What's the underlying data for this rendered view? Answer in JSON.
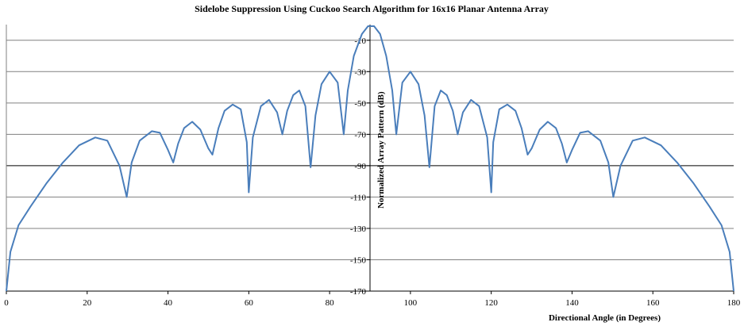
{
  "chart_data": {
    "type": "line",
    "title": "Sidelobe Suppression  Using Cuckoo Search Algorithm  for 16x16 Planar Antenna Array",
    "xlabel": "Directional Angle (in Degrees)",
    "ylabel": "Normalized Array Pattern (dB)",
    "xlim": [
      0,
      180
    ],
    "ylim": [
      -170,
      0
    ],
    "x_ticks": [
      0,
      20,
      40,
      60,
      80,
      100,
      120,
      140,
      160,
      180
    ],
    "y_ticks": [
      -10,
      -30,
      -50,
      -70,
      -90,
      -110,
      -130,
      -150,
      -170
    ],
    "grid": "horizontal",
    "legend": "none",
    "line_color": "#4a7ebb",
    "series": [
      {
        "points": [
          [
            0,
            -170
          ],
          [
            1,
            -145
          ],
          [
            3,
            -128
          ],
          [
            6,
            -116
          ],
          [
            10,
            -101
          ],
          [
            14,
            -88
          ],
          [
            18,
            -77
          ],
          [
            22,
            -72
          ],
          [
            25,
            -74
          ],
          [
            28,
            -90
          ],
          [
            29.8,
            -110
          ],
          [
            31,
            -88
          ],
          [
            33,
            -74
          ],
          [
            36,
            -68
          ],
          [
            38,
            -69
          ],
          [
            40,
            -80
          ],
          [
            41.3,
            -88
          ],
          [
            42.5,
            -76
          ],
          [
            44,
            -66
          ],
          [
            46,
            -62
          ],
          [
            48,
            -67
          ],
          [
            50,
            -79
          ],
          [
            51,
            -83
          ],
          [
            52.5,
            -66
          ],
          [
            54,
            -55
          ],
          [
            56,
            -51
          ],
          [
            58,
            -54
          ],
          [
            59.5,
            -75
          ],
          [
            60,
            -107
          ],
          [
            61,
            -72
          ],
          [
            63,
            -52
          ],
          [
            65,
            -48
          ],
          [
            67,
            -56
          ],
          [
            68.3,
            -70
          ],
          [
            69.5,
            -55
          ],
          [
            71,
            -45
          ],
          [
            72.5,
            -42
          ],
          [
            74,
            -52
          ],
          [
            75.3,
            -91
          ],
          [
            76.5,
            -58
          ],
          [
            78,
            -38
          ],
          [
            80,
            -30
          ],
          [
            82,
            -37
          ],
          [
            83.5,
            -70
          ],
          [
            84.5,
            -42
          ],
          [
            86,
            -20
          ],
          [
            88,
            -6
          ],
          [
            89.5,
            -1
          ],
          [
            91,
            -1
          ],
          [
            92.5,
            -6
          ],
          [
            94,
            -20
          ],
          [
            95.5,
            -42
          ],
          [
            96.5,
            -70
          ],
          [
            98,
            -37
          ],
          [
            100,
            -30
          ],
          [
            102,
            -38
          ],
          [
            103.5,
            -58
          ],
          [
            104.7,
            -91
          ],
          [
            106,
            -52
          ],
          [
            107.5,
            -42
          ],
          [
            109,
            -45
          ],
          [
            110.5,
            -55
          ],
          [
            111.7,
            -70
          ],
          [
            113,
            -56
          ],
          [
            115,
            -48
          ],
          [
            117,
            -52
          ],
          [
            119,
            -72
          ],
          [
            120,
            -107
          ],
          [
            120.5,
            -75
          ],
          [
            122,
            -54
          ],
          [
            124,
            -51
          ],
          [
            126,
            -55
          ],
          [
            127.5,
            -66
          ],
          [
            129,
            -83
          ],
          [
            130,
            -79
          ],
          [
            132,
            -67
          ],
          [
            134,
            -62
          ],
          [
            136,
            -66
          ],
          [
            137.5,
            -76
          ],
          [
            138.7,
            -88
          ],
          [
            140,
            -80
          ],
          [
            142,
            -69
          ],
          [
            144,
            -68
          ],
          [
            147,
            -74
          ],
          [
            149,
            -88
          ],
          [
            150.2,
            -110
          ],
          [
            152,
            -90
          ],
          [
            155,
            -74
          ],
          [
            158,
            -72
          ],
          [
            162,
            -77
          ],
          [
            166,
            -88
          ],
          [
            170,
            -101
          ],
          [
            174,
            -116
          ],
          [
            177,
            -128
          ],
          [
            179,
            -145
          ],
          [
            180,
            -170
          ]
        ]
      }
    ]
  }
}
